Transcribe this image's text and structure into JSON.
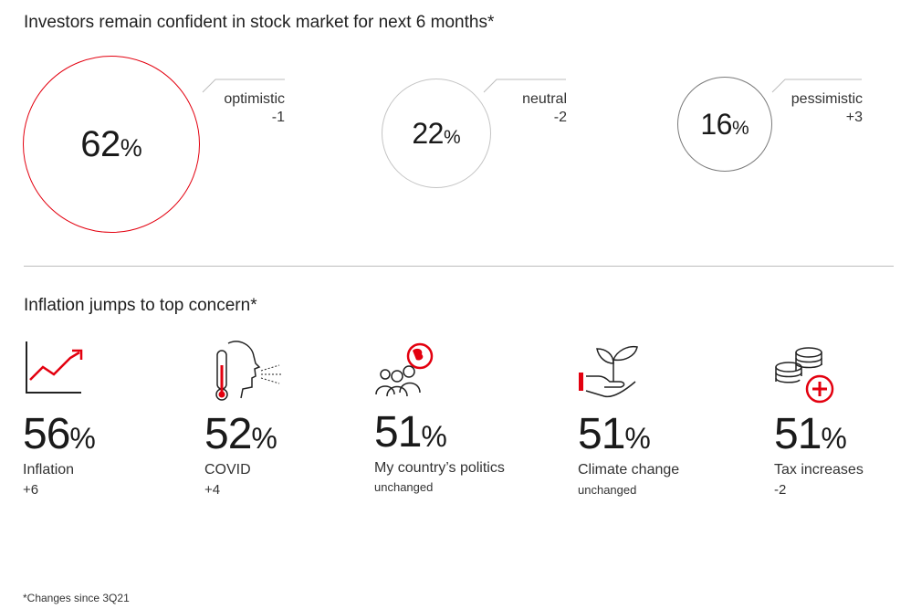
{
  "section1": {
    "title": "Investors remain confident in stock market for next 6 months*",
    "items": [
      {
        "value": "62",
        "unit": "%",
        "label": "optimistic",
        "change": "-1",
        "color": "#e3000f"
      },
      {
        "value": "22",
        "unit": "%",
        "label": "neutral",
        "change": "-2",
        "color": "#c4c4c4"
      },
      {
        "value": "16",
        "unit": "%",
        "label": "pessimistic",
        "change": "+3",
        "color": "#7a7a7a"
      }
    ]
  },
  "section2": {
    "title": "Inflation jumps to top concern*",
    "items": [
      {
        "icon": "rising-chart-icon",
        "value": "56",
        "unit": "%",
        "label": "Inflation",
        "change": "+6"
      },
      {
        "icon": "thermometer-head-icon",
        "value": "52",
        "unit": "%",
        "label": "COVID",
        "change": "+4"
      },
      {
        "icon": "people-globe-icon",
        "value": "51",
        "unit": "%",
        "label": "My country’s politics",
        "change": "unchanged"
      },
      {
        "icon": "hand-plant-icon",
        "value": "51",
        "unit": "%",
        "label": "Climate change",
        "change": "unchanged"
      },
      {
        "icon": "coins-plus-icon",
        "value": "51",
        "unit": "%",
        "label": "Tax increases",
        "change": "-2"
      }
    ]
  },
  "footnote": "*Changes since 3Q21",
  "colors": {
    "accent": "#e3000f",
    "divider": "#bdbdbd"
  }
}
